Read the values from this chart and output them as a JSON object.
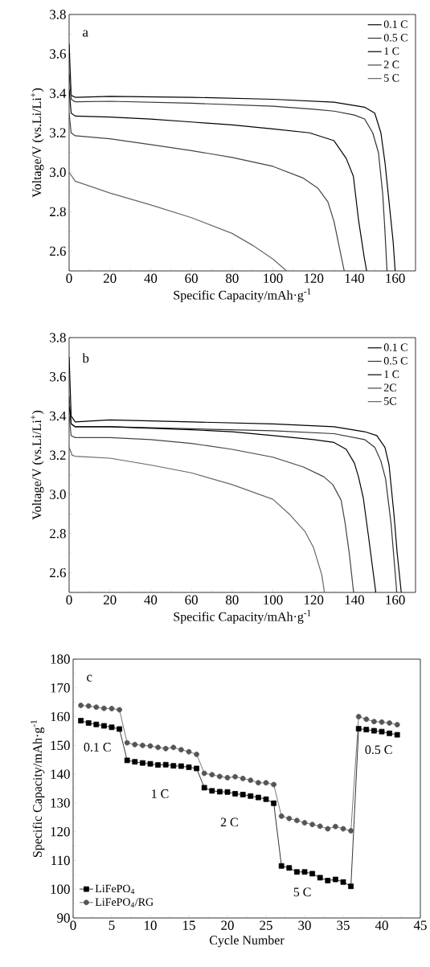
{
  "chart_data": [
    {
      "type": "line",
      "xlabel": "Specific Capacity/mAh·g$^{-1}$",
      "ylabel": "Voltage/V (vs.Li/Li$^{+}$)",
      "annotations": [
        "a"
      ],
      "xlim": [
        0,
        170
      ],
      "ylim": [
        2.5,
        3.8
      ],
      "xticks": [
        0,
        20,
        40,
        60,
        80,
        100,
        120,
        140,
        160
      ],
      "yticks": [
        2.6,
        2.8,
        {
          "value": 3.0,
          "label": "3.0"
        },
        3.2,
        3.4,
        3.6,
        3.8
      ],
      "legend": "top right",
      "series": [
        {
          "name": "0.1 C",
          "color": "#000000",
          "x": [
            0,
            1,
            3,
            20,
            60,
            100,
            130,
            145,
            150,
            153,
            155,
            157,
            159,
            160
          ],
          "values": [
            3.65,
            3.39,
            3.38,
            3.385,
            3.38,
            3.37,
            3.355,
            3.33,
            3.3,
            3.2,
            3.05,
            2.85,
            2.65,
            2.5
          ]
        },
        {
          "name": "0.5 C",
          "color": "#333333",
          "x": [
            0,
            1,
            3,
            20,
            60,
            100,
            120,
            130,
            140,
            145,
            149,
            151.8,
            153.9,
            155,
            156
          ],
          "values": [
            3.5,
            3.37,
            3.357,
            3.36,
            3.35,
            3.335,
            3.32,
            3.31,
            3.29,
            3.27,
            3.2,
            3.1,
            2.89,
            2.7,
            2.5
          ]
        },
        {
          "name": "1 C",
          "color": "#000000",
          "x": [
            0,
            1,
            3,
            20,
            40,
            60,
            80,
            100,
            118,
            130,
            136,
            139.5,
            142,
            144.8,
            146
          ],
          "values": [
            3.42,
            3.3,
            3.285,
            3.28,
            3.27,
            3.255,
            3.24,
            3.22,
            3.2,
            3.16,
            3.07,
            2.98,
            2.76,
            2.57,
            2.5
          ]
        },
        {
          "name": "2 C",
          "color": "#444444",
          "x": [
            0,
            1,
            3,
            20,
            40,
            60,
            80,
            100,
            115,
            122,
            127,
            130,
            132,
            134,
            135
          ],
          "values": [
            3.3,
            3.2,
            3.185,
            3.17,
            3.14,
            3.11,
            3.075,
            3.03,
            2.97,
            2.92,
            2.85,
            2.75,
            2.65,
            2.55,
            2.5
          ]
        },
        {
          "name": "5 C",
          "color": "#666666",
          "x": [
            0,
            3,
            20,
            40,
            60,
            80,
            90,
            100,
            106.7
          ],
          "values": [
            3.0,
            2.955,
            2.895,
            2.835,
            2.77,
            2.69,
            2.63,
            2.56,
            2.5
          ]
        }
      ]
    },
    {
      "type": "line",
      "xlabel": "Specific Capacity/mAh·g$^{-1}$",
      "ylabel": "Voltage/V (vs.Li/Li$^{+}$)",
      "annotations": [
        "b"
      ],
      "xlim": [
        0,
        170
      ],
      "ylim": [
        2.5,
        3.8
      ],
      "xticks": [
        0,
        20,
        40,
        60,
        80,
        100,
        120,
        140,
        160
      ],
      "yticks": [
        2.6,
        2.8,
        {
          "value": 3.0,
          "label": "3.0"
        },
        3.2,
        3.4,
        3.6,
        3.8
      ],
      "legend": "top right",
      "series": [
        {
          "name": "0.1 C",
          "color": "#000000",
          "x": [
            0,
            1,
            3,
            20,
            60,
            100,
            130,
            145,
            151,
            155,
            157,
            159.4,
            161,
            163
          ],
          "values": [
            3.7,
            3.4,
            3.37,
            3.38,
            3.37,
            3.36,
            3.345,
            3.32,
            3.3,
            3.24,
            3.15,
            2.9,
            2.7,
            2.5
          ]
        },
        {
          "name": "0.5 C",
          "color": "#333333",
          "x": [
            0,
            1,
            3,
            20,
            60,
            100,
            130,
            145,
            150,
            153,
            155.3,
            158,
            160.8
          ],
          "values": [
            3.5,
            3.36,
            3.345,
            3.345,
            3.335,
            3.325,
            3.31,
            3.28,
            3.24,
            3.17,
            3.08,
            2.85,
            2.5
          ]
        },
        {
          "name": "1 C",
          "color": "#000000",
          "x": [
            0,
            1,
            3,
            20,
            60,
            80,
            100,
            120,
            130,
            136,
            140,
            142,
            144.4,
            147,
            150.5
          ],
          "values": [
            3.45,
            3.36,
            3.345,
            3.345,
            3.33,
            3.32,
            3.3,
            3.28,
            3.265,
            3.23,
            3.16,
            3.09,
            2.98,
            2.78,
            2.5
          ]
        },
        {
          "name": "2C",
          "color": "#444444",
          "x": [
            0,
            1,
            3,
            20,
            40,
            60,
            80,
            100,
            115,
            125,
            129.4,
            133.5,
            135.5,
            137.6,
            139.6
          ],
          "values": [
            3.4,
            3.3,
            3.29,
            3.29,
            3.28,
            3.26,
            3.23,
            3.19,
            3.14,
            3.09,
            3.05,
            2.97,
            2.85,
            2.69,
            2.5
          ]
        },
        {
          "name": "5C",
          "color": "#666666",
          "x": [
            0,
            1.5,
            3,
            20,
            40,
            60,
            80,
            100,
            108,
            115.8,
            119.9,
            124,
            125.3
          ],
          "values": [
            3.24,
            3.2,
            3.195,
            3.185,
            3.15,
            3.11,
            3.05,
            2.975,
            2.9,
            2.81,
            2.73,
            2.59,
            2.5
          ]
        }
      ]
    },
    {
      "type": "line",
      "xlabel": "Cycle Number",
      "ylabel": "Specific Capacity/mAh·g$^{-1}$",
      "annotations": [
        "c",
        "0.1 C",
        "1 C",
        "2 C",
        "5 C",
        "0.5 C"
      ],
      "xlim": [
        0,
        45
      ],
      "ylim": [
        90,
        180
      ],
      "xticks": [
        0,
        5,
        10,
        15,
        20,
        25,
        30,
        35,
        40,
        45
      ],
      "yticks": [
        90,
        100,
        110,
        120,
        130,
        140,
        150,
        160,
        170,
        180
      ],
      "legend": "bottom left",
      "x": [
        1,
        2,
        3,
        4,
        5,
        6,
        7,
        8,
        9,
        10,
        11,
        12,
        13,
        14,
        15,
        16,
        17,
        18,
        19,
        20,
        21,
        22,
        23,
        24,
        25,
        26,
        27,
        28,
        29,
        30,
        31,
        32,
        33,
        34,
        35,
        36,
        37,
        38,
        39,
        40,
        41,
        42
      ],
      "series": [
        {
          "name": "LiFePO$_{4}$",
          "color": "#000000",
          "marker": "square",
          "values": [
            158.6,
            157.8,
            157.3,
            156.8,
            156.3,
            155.7,
            144.8,
            144.3,
            143.9,
            143.6,
            143.2,
            143.3,
            142.9,
            142.8,
            142.4,
            142.0,
            135.3,
            134.2,
            133.9,
            133.8,
            133.2,
            132.9,
            132.4,
            131.9,
            131.3,
            129.9,
            108.1,
            107.4,
            106.0,
            106.0,
            105.4,
            104.0,
            103.0,
            103.4,
            102.5,
            101.0,
            155.8,
            155.5,
            155.1,
            154.8,
            154.2,
            153.7
          ]
        },
        {
          "name": "LiFePO$_{4}$/RG",
          "color": "#555555",
          "marker": "circle",
          "values": [
            163.9,
            163.7,
            163.3,
            162.9,
            162.8,
            162.4,
            150.9,
            150.3,
            150.0,
            149.8,
            149.3,
            148.9,
            149.3,
            148.5,
            147.8,
            146.9,
            140.3,
            139.8,
            139.2,
            138.8,
            139.1,
            138.5,
            137.9,
            137.0,
            137.0,
            136.4,
            125.4,
            124.6,
            123.9,
            123.1,
            122.5,
            121.9,
            121.0,
            121.8,
            121.0,
            120.3,
            160.0,
            159.1,
            158.3,
            158.1,
            157.8,
            157.2
          ]
        }
      ]
    }
  ]
}
